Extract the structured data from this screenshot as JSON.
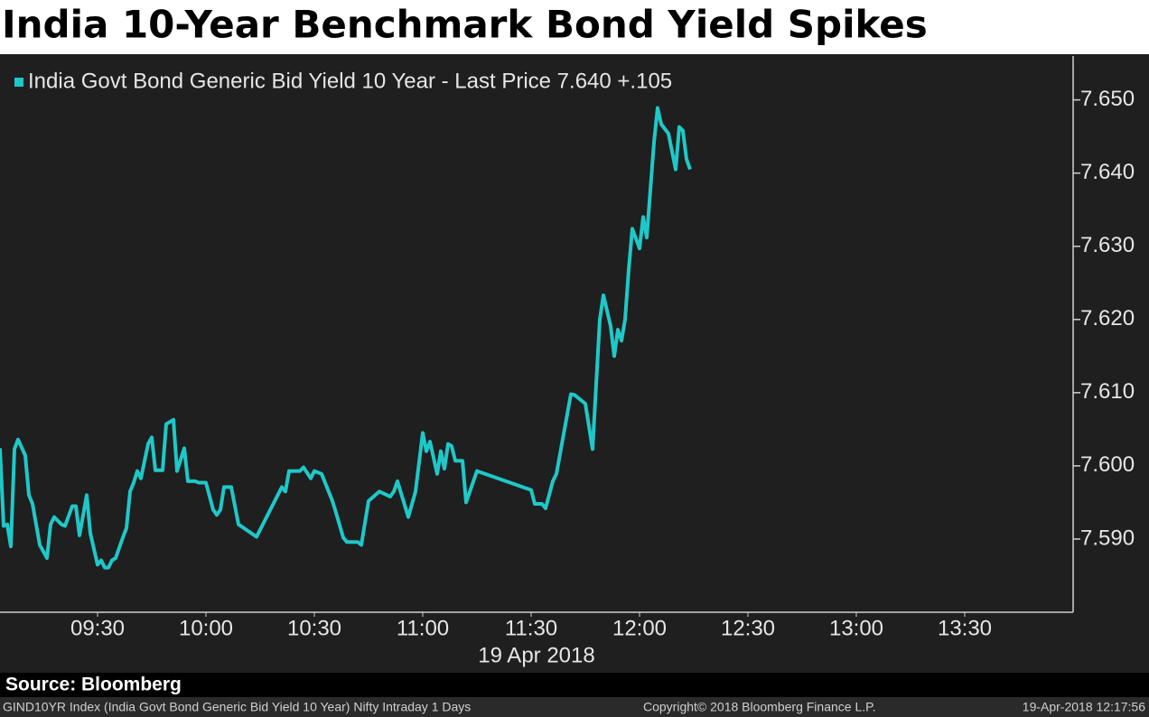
{
  "chart_data": {
    "type": "line",
    "title": "India 10-Year Benchmark Bond Yield Spikes",
    "x_label": "19 Apr 2018",
    "x": [
      "09:03",
      "09:04",
      "09:05",
      "09:06",
      "09:07",
      "09:08",
      "09:10",
      "09:11",
      "09:12",
      "09:14",
      "09:16",
      "09:17",
      "09:18",
      "09:20",
      "09:21",
      "09:23",
      "09:24",
      "09:25",
      "09:27",
      "09:28",
      "09:30",
      "09:31",
      "09:32",
      "09:33",
      "09:34",
      "09:35",
      "09:37",
      "09:38",
      "09:39",
      "09:40",
      "09:41",
      "09:42",
      "09:44",
      "09:45",
      "09:46",
      "09:48",
      "09:49",
      "09:51",
      "09:52",
      "09:54",
      "09:55",
      "09:57",
      "09:58",
      "10:00",
      "10:02",
      "10:03",
      "10:04",
      "10:05",
      "10:07",
      "10:09",
      "10:14",
      "10:21",
      "10:22",
      "10:23",
      "10:26",
      "10:27",
      "10:29",
      "10:30",
      "10:32",
      "10:35",
      "10:36",
      "10:38",
      "10:39",
      "10:42",
      "10:43",
      "10:45",
      "10:48",
      "10:51",
      "10:52",
      "10:53",
      "10:56",
      "10:58",
      "11:00",
      "11:01",
      "11:02",
      "11:04",
      "11:05",
      "11:06",
      "11:07",
      "11:08",
      "11:09",
      "11:11",
      "11:12",
      "11:15",
      "11:30",
      "11:31",
      "11:33",
      "11:34",
      "11:36",
      "11:37",
      "11:41",
      "11:42",
      "11:45",
      "11:47",
      "11:49",
      "11:50",
      "11:52",
      "11:53",
      "11:54",
      "11:55",
      "11:56",
      "11:57",
      "11:58",
      "12:00",
      "12:01",
      "12:02",
      "12:04",
      "12:05",
      "12:06",
      "12:08",
      "12:10",
      "12:11",
      "12:12",
      "12:13",
      "12:14"
    ],
    "series": [
      {
        "name": "India Govt Bond Generic Bid Yield 10 Year - Last Price 7.640 +.105",
        "color": "#1fc8c8",
        "values": [
          7.6024,
          7.5918,
          7.592,
          7.589,
          7.6023,
          7.6036,
          7.6014,
          7.596,
          7.5948,
          7.5892,
          7.5874,
          7.592,
          7.593,
          7.592,
          7.5918,
          7.5945,
          7.5945,
          7.5905,
          7.596,
          7.5908,
          7.5865,
          7.5871,
          7.5861,
          7.5861,
          7.5871,
          7.5874,
          7.5902,
          7.5915,
          7.5965,
          7.5977,
          7.5993,
          7.5983,
          7.603,
          7.6039,
          7.5994,
          7.5994,
          7.6057,
          7.6063,
          7.5993,
          7.6024,
          7.5979,
          7.5979,
          7.5977,
          7.5977,
          7.594,
          7.5933,
          7.594,
          7.5971,
          7.5971,
          7.592,
          7.5903,
          7.5971,
          7.5965,
          7.5993,
          7.5993,
          7.5998,
          7.5983,
          7.5993,
          7.5989,
          7.5952,
          7.5936,
          7.5902,
          7.5896,
          7.5896,
          7.5892,
          7.5952,
          7.5965,
          7.5958,
          7.5965,
          7.5979,
          7.593,
          7.5965,
          7.6045,
          7.602,
          7.6033,
          7.5989,
          7.602,
          7.5996,
          7.603,
          7.6027,
          7.6007,
          7.6007,
          7.595,
          7.5993,
          7.5967,
          7.5948,
          7.5948,
          7.5942,
          7.5979,
          7.5989,
          7.6098,
          7.6097,
          7.6085,
          7.6023,
          7.62,
          7.6233,
          7.6191,
          7.615,
          7.6186,
          7.6171,
          7.62,
          7.6268,
          7.6324,
          7.6297,
          7.634,
          7.6312,
          7.6442,
          7.6489,
          7.6467,
          7.6454,
          7.6405,
          7.6463,
          7.6458,
          7.6419,
          7.6405
        ]
      }
    ],
    "xlim": [
      "09:03",
      "14:00"
    ],
    "xticks": [
      "09:30",
      "10:00",
      "10:30",
      "11:00",
      "11:30",
      "12:00",
      "12:30",
      "13:00",
      "13:30"
    ],
    "ylim": [
      7.58,
      7.656
    ],
    "yticks": [
      {
        "value": 7.59,
        "label": "7.590"
      },
      {
        "value": 7.6,
        "label": "7.600"
      },
      {
        "value": 7.61,
        "label": "7.610"
      },
      {
        "value": 7.62,
        "label": "7.620"
      },
      {
        "value": 7.63,
        "label": "7.630"
      },
      {
        "value": 7.64,
        "label": "7.640"
      },
      {
        "value": 7.65,
        "label": "7.650"
      }
    ],
    "grid": false
  },
  "footer": {
    "source": "Source: Bloomberg",
    "ticker": "GIND10YR Index (India Govt Bond Generic Bid Yield 10 Year) Nifty Intraday 1 Days",
    "copyright": "Copyright© 2018 Bloomberg Finance L.P.",
    "timestamp": "19-Apr-2018 12:17:56"
  }
}
